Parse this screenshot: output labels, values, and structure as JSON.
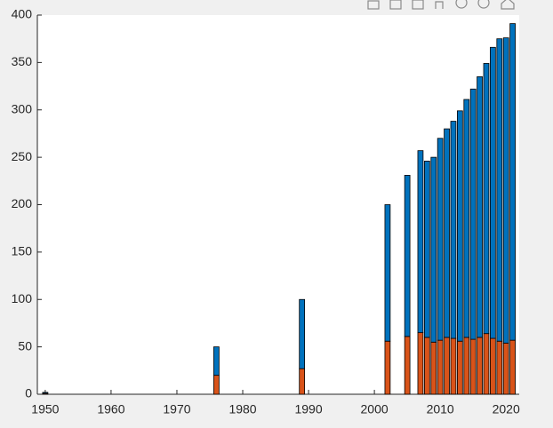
{
  "chart_data": {
    "type": "bar",
    "stacked": true,
    "x": [
      1950,
      1976,
      1989,
      2002,
      2005,
      2007,
      2008,
      2009,
      2010,
      2011,
      2012,
      2013,
      2014,
      2015,
      2016,
      2017,
      2018,
      2019,
      2020,
      2021
    ],
    "series": [
      {
        "color": "#D95319",
        "values": [
          1,
          20,
          27,
          56,
          61,
          65,
          60,
          55,
          57,
          60,
          59,
          56,
          60,
          58,
          60,
          64,
          59,
          56,
          54,
          57
        ]
      },
      {
        "color": "#0072BD",
        "values": [
          1,
          30,
          73,
          144,
          170,
          192,
          186,
          195,
          213,
          220,
          229,
          243,
          251,
          264,
          275,
          285,
          307,
          319,
          322,
          334
        ]
      }
    ],
    "xlim": [
      1948.8,
      2022
    ],
    "xticks": [
      1950,
      1960,
      1970,
      1980,
      1990,
      2000,
      2010,
      2020
    ],
    "ylim": [
      0,
      400
    ],
    "yticks": [
      0,
      50,
      100,
      150,
      200,
      250,
      300,
      350,
      400
    ]
  }
}
